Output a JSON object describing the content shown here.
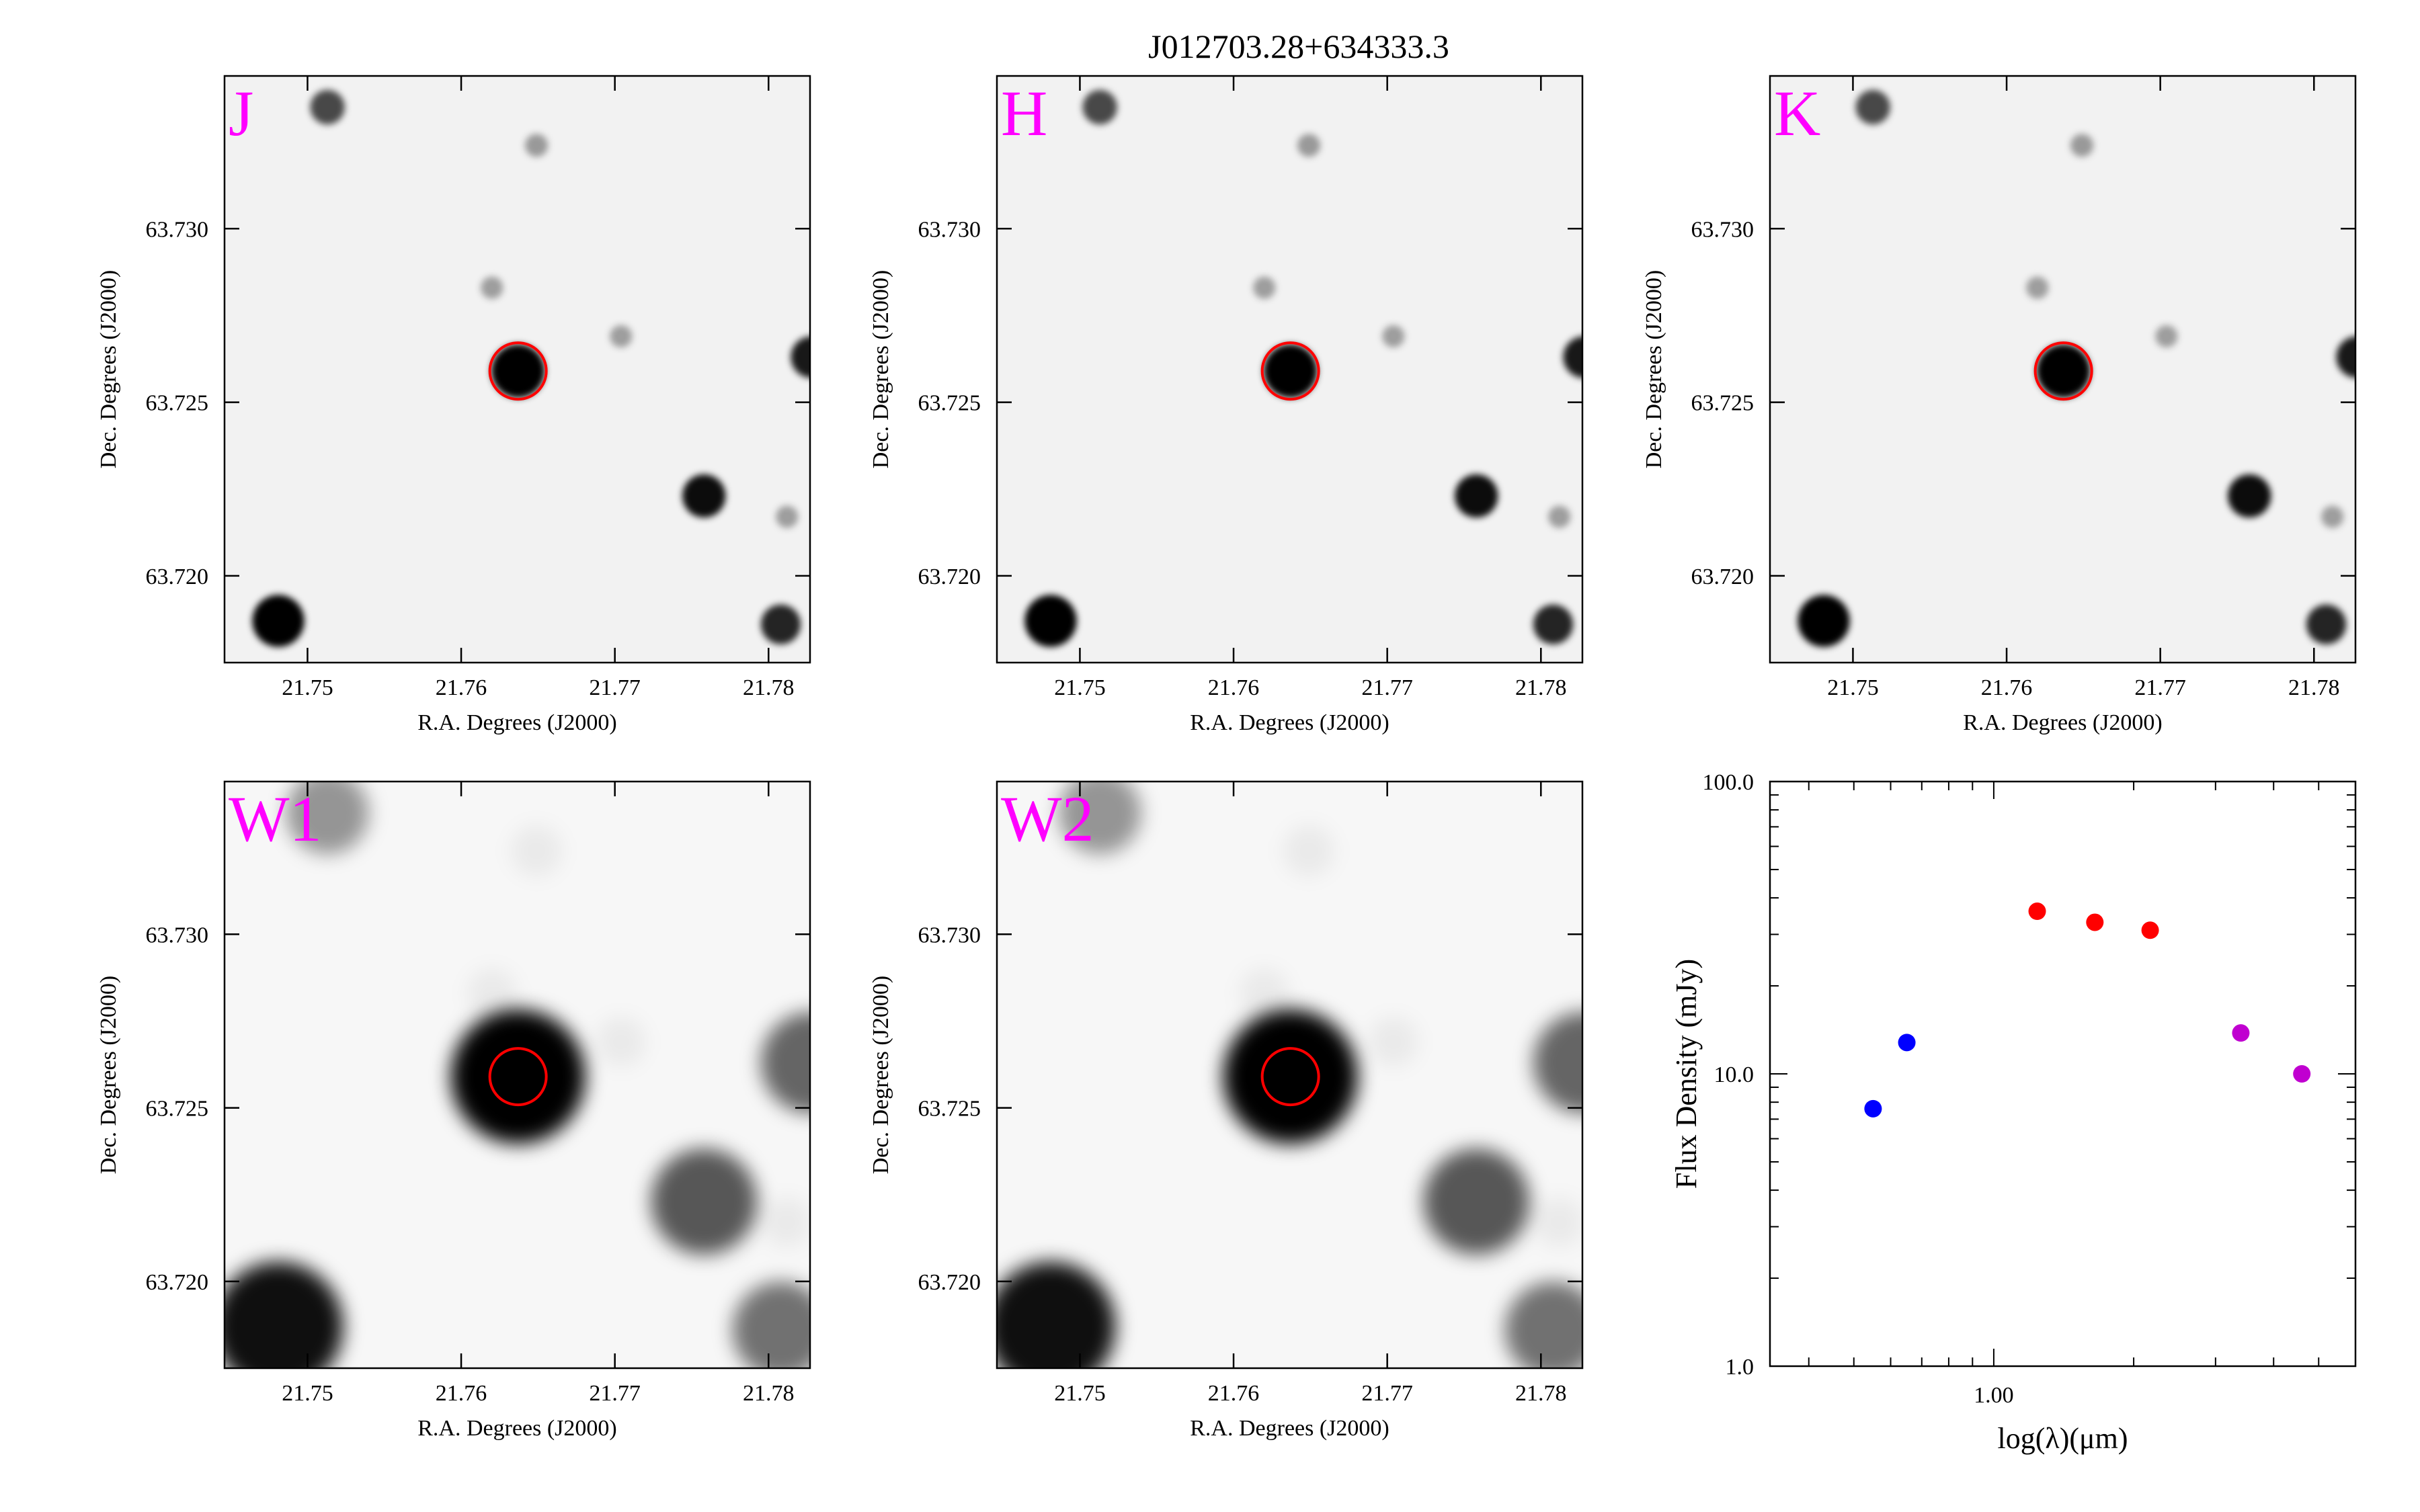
{
  "title": "J012703.28+634333.3",
  "colors": {
    "circle": "#ff0000",
    "band_label": "#ff00ff",
    "sed_blue": "#0000ff",
    "sed_red": "#ff0000",
    "sed_purple": "#c000d0"
  },
  "image_panels": [
    {
      "band": "J",
      "smoothing": "sharp"
    },
    {
      "band": "H",
      "smoothing": "sharp"
    },
    {
      "band": "K",
      "smoothing": "sharp"
    },
    {
      "band": "W1",
      "smoothing": "blurred"
    },
    {
      "band": "W2",
      "smoothing": "blurred"
    }
  ],
  "panel_axes": {
    "xlabel": "R.A. Degrees (J2000)",
    "ylabel": "Dec. Degrees (J2000)",
    "xticks": [
      21.75,
      21.76,
      21.77,
      21.78
    ],
    "xtick_labels": [
      "21.75",
      "21.76",
      "21.77",
      "21.78"
    ],
    "yticks": [
      63.72,
      63.725,
      63.73
    ],
    "ytick_labels": [
      "63.720",
      "63.725",
      "63.730"
    ],
    "xlim": [
      21.7446,
      21.7827
    ],
    "ylim": [
      63.7175,
      63.7344
    ]
  },
  "target": {
    "ra": 21.7637,
    "dec": 63.7259
  },
  "sources": [
    {
      "ra": 21.7637,
      "dec": 63.7259,
      "strength": 1.0
    },
    {
      "ra": 21.7481,
      "dec": 63.7187,
      "strength": 0.95
    },
    {
      "ra": 21.7758,
      "dec": 63.7223,
      "strength": 0.7
    },
    {
      "ra": 21.7808,
      "dec": 63.7186,
      "strength": 0.6
    },
    {
      "ra": 21.7828,
      "dec": 63.7263,
      "strength": 0.65
    },
    {
      "ra": 21.7513,
      "dec": 63.7335,
      "strength": 0.45
    },
    {
      "ra": 21.7649,
      "dec": 63.7324,
      "strength": 0.12
    },
    {
      "ra": 21.762,
      "dec": 63.7283,
      "strength": 0.1
    },
    {
      "ra": 21.7704,
      "dec": 63.7269,
      "strength": 0.1
    },
    {
      "ra": 21.7812,
      "dec": 63.7217,
      "strength": 0.1
    }
  ],
  "chart_data": {
    "type": "scatter",
    "xlabel": "log(λ)(μm)",
    "ylabel": "Flux Density (mJy)",
    "xscale": "log",
    "yscale": "log",
    "xlim": [
      0.33,
      6.0
    ],
    "ylim": [
      1.0,
      100.0
    ],
    "xtick_labels": [
      "1.00"
    ],
    "ytick_labels": [
      "1.0",
      "10.0",
      "100.0"
    ],
    "series": [
      {
        "color": "#0000ff",
        "points": [
          {
            "x": 0.55,
            "y": 7.6
          },
          {
            "x": 0.65,
            "y": 12.8
          }
        ]
      },
      {
        "color": "#ff0000",
        "points": [
          {
            "x": 1.24,
            "y": 36.0
          },
          {
            "x": 1.65,
            "y": 33.0
          },
          {
            "x": 2.17,
            "y": 31.0
          }
        ]
      },
      {
        "color": "#c000d0",
        "points": [
          {
            "x": 3.4,
            "y": 13.8
          },
          {
            "x": 4.6,
            "y": 10.0
          }
        ]
      }
    ]
  }
}
